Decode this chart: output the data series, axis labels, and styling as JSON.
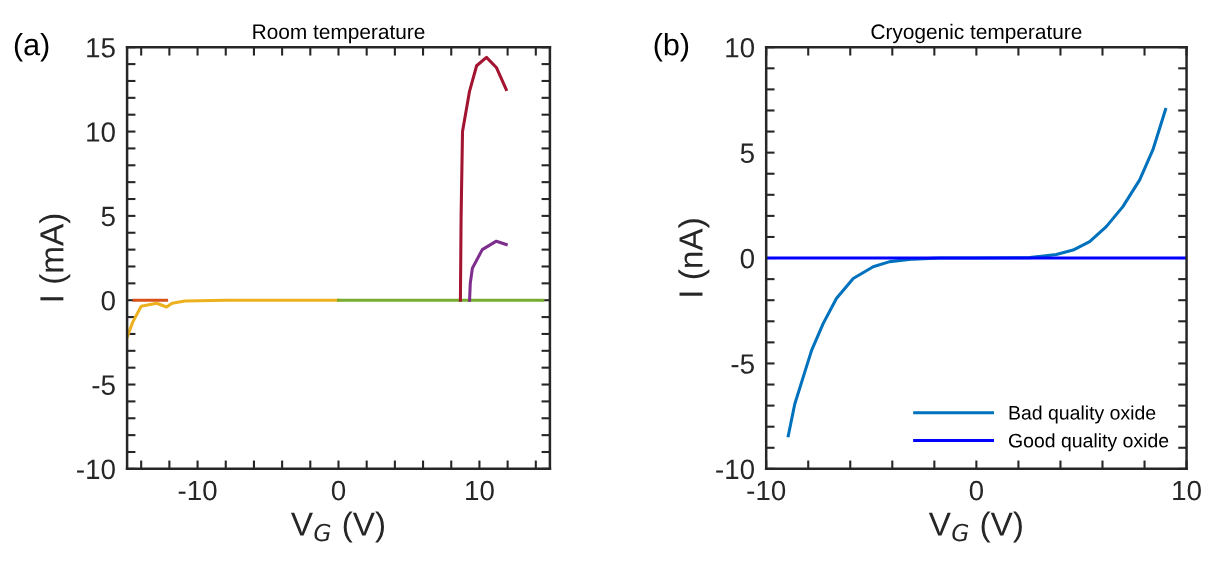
{
  "chart_data": [
    {
      "type": "line",
      "title": "Room temperature",
      "xlabel": "V$_{G}$ (V)",
      "ylabel": "I (mA)",
      "annotations": [
        "(a)"
      ],
      "xlim": [
        -15,
        15
      ],
      "ylim": [
        -10,
        15
      ],
      "xticks": [
        {
          "value": -14,
          "label": null
        },
        {
          "value": -12,
          "label": null
        },
        -10,
        {
          "value": -8,
          "label": null
        },
        {
          "value": -6,
          "label": null
        },
        {
          "value": -4,
          "label": null
        },
        {
          "value": -2,
          "label": null
        },
        0,
        {
          "value": 2,
          "label": null
        },
        {
          "value": 4,
          "label": null
        },
        {
          "value": 6,
          "label": null
        },
        {
          "value": 8,
          "label": null
        },
        10,
        {
          "value": 12,
          "label": null
        },
        {
          "value": 14,
          "label": null
        }
      ],
      "yticks": [
        -10,
        {
          "value": -9,
          "label": null
        },
        {
          "value": -8,
          "label": null
        },
        {
          "value": -7,
          "label": null
        },
        {
          "value": -6,
          "label": null
        },
        -5,
        {
          "value": -4,
          "label": null
        },
        {
          "value": -3,
          "label": null
        },
        {
          "value": -2,
          "label": null
        },
        {
          "value": -1,
          "label": null
        },
        0,
        {
          "value": 1,
          "label": null
        },
        {
          "value": 2,
          "label": null
        },
        {
          "value": 3,
          "label": null
        },
        {
          "value": 4,
          "label": null
        },
        5,
        {
          "value": 6,
          "label": null
        },
        {
          "value": 7,
          "label": null
        },
        {
          "value": 8,
          "label": null
        },
        {
          "value": 9,
          "label": null
        },
        10,
        {
          "value": 11,
          "label": null
        },
        {
          "value": 12,
          "label": null
        },
        {
          "value": 13,
          "label": null
        },
        {
          "value": 14,
          "label": null
        },
        15
      ],
      "grid": false,
      "legend": false,
      "series": [
        {
          "color": "#d95319",
          "x": [
            -14.5,
            -12.2
          ],
          "values": [
            0,
            0
          ]
        },
        {
          "color": "#edb120",
          "x": [
            -15,
            -14.6,
            -14.0,
            -12.9,
            -12.2,
            -11.8,
            -10.9,
            -8,
            -4,
            0
          ],
          "values": [
            -2.2,
            -1.3,
            -0.36,
            -0.18,
            -0.4,
            -0.18,
            -0.05,
            0,
            0,
            0
          ]
        },
        {
          "color": "#77ac30",
          "x": [
            0,
            5,
            10,
            14.5
          ],
          "values": [
            0,
            0,
            0,
            0
          ]
        },
        {
          "color": "#a2142f",
          "x": [
            8.65,
            8.7,
            8.8,
            9.3,
            9.8,
            10.5,
            11.2,
            11.9
          ],
          "values": [
            0,
            5,
            10,
            12.4,
            13.9,
            14.4,
            13.8,
            12.5
          ]
        },
        {
          "color": "#7e2f8e",
          "x": [
            9.3,
            9.35,
            9.5,
            10.2,
            11.2,
            11.9
          ],
          "values": [
            0,
            1,
            1.9,
            3.0,
            3.5,
            3.3
          ]
        }
      ]
    },
    {
      "type": "line",
      "title": "Cryogenic temperature",
      "xlabel": "V$_{G}$ (V)",
      "ylabel": "I (nA)",
      "annotations": [
        "(b)"
      ],
      "xlim": [
        -10,
        10
      ],
      "ylim": [
        -10,
        10
      ],
      "xticks": [
        -10,
        {
          "value": -8,
          "label": null
        },
        {
          "value": -6,
          "label": null
        },
        {
          "value": -4,
          "label": null
        },
        {
          "value": -2,
          "label": null
        },
        0,
        {
          "value": 2,
          "label": null
        },
        {
          "value": 4,
          "label": null
        },
        {
          "value": 6,
          "label": null
        },
        {
          "value": 8,
          "label": null
        },
        10
      ],
      "yticks": [
        -10,
        {
          "value": -9,
          "label": null
        },
        {
          "value": -8,
          "label": null
        },
        {
          "value": -7,
          "label": null
        },
        {
          "value": -6,
          "label": null
        },
        -5,
        {
          "value": -4,
          "label": null
        },
        {
          "value": -3,
          "label": null
        },
        {
          "value": -2,
          "label": null
        },
        {
          "value": -1,
          "label": null
        },
        0,
        {
          "value": 1,
          "label": null
        },
        {
          "value": 2,
          "label": null
        },
        {
          "value": 3,
          "label": null
        },
        {
          "value": 4,
          "label": null
        },
        5,
        {
          "value": 6,
          "label": null
        },
        {
          "value": 7,
          "label": null
        },
        {
          "value": 8,
          "label": null
        },
        {
          "value": 9,
          "label": null
        },
        10
      ],
      "grid": false,
      "legend": "bottom right",
      "series": [
        {
          "name": "Bad quality oxide",
          "color": "#0072bd",
          "x": [
            -8.95,
            -8.64,
            -8.24,
            -7.84,
            -7.29,
            -6.66,
            -5.86,
            -4.91,
            -4.12,
            -3.0,
            -1.74,
            0,
            2.54,
            3.8,
            4.6,
            5.39,
            6.18,
            6.97,
            7.77,
            8.4,
            9.0
          ],
          "values": [
            -8.43,
            -6.92,
            -5.65,
            -4.38,
            -3.11,
            -1.92,
            -0.97,
            -0.41,
            -0.17,
            -0.05,
            0,
            0,
            0.02,
            0.17,
            0.38,
            0.78,
            1.49,
            2.44,
            3.71,
            5.14,
            7.05
          ]
        },
        {
          "name": "Good quality oxide",
          "color": "#0000ff",
          "x": [
            -10,
            0,
            10
          ],
          "values": [
            0,
            0,
            0
          ]
        }
      ]
    }
  ]
}
